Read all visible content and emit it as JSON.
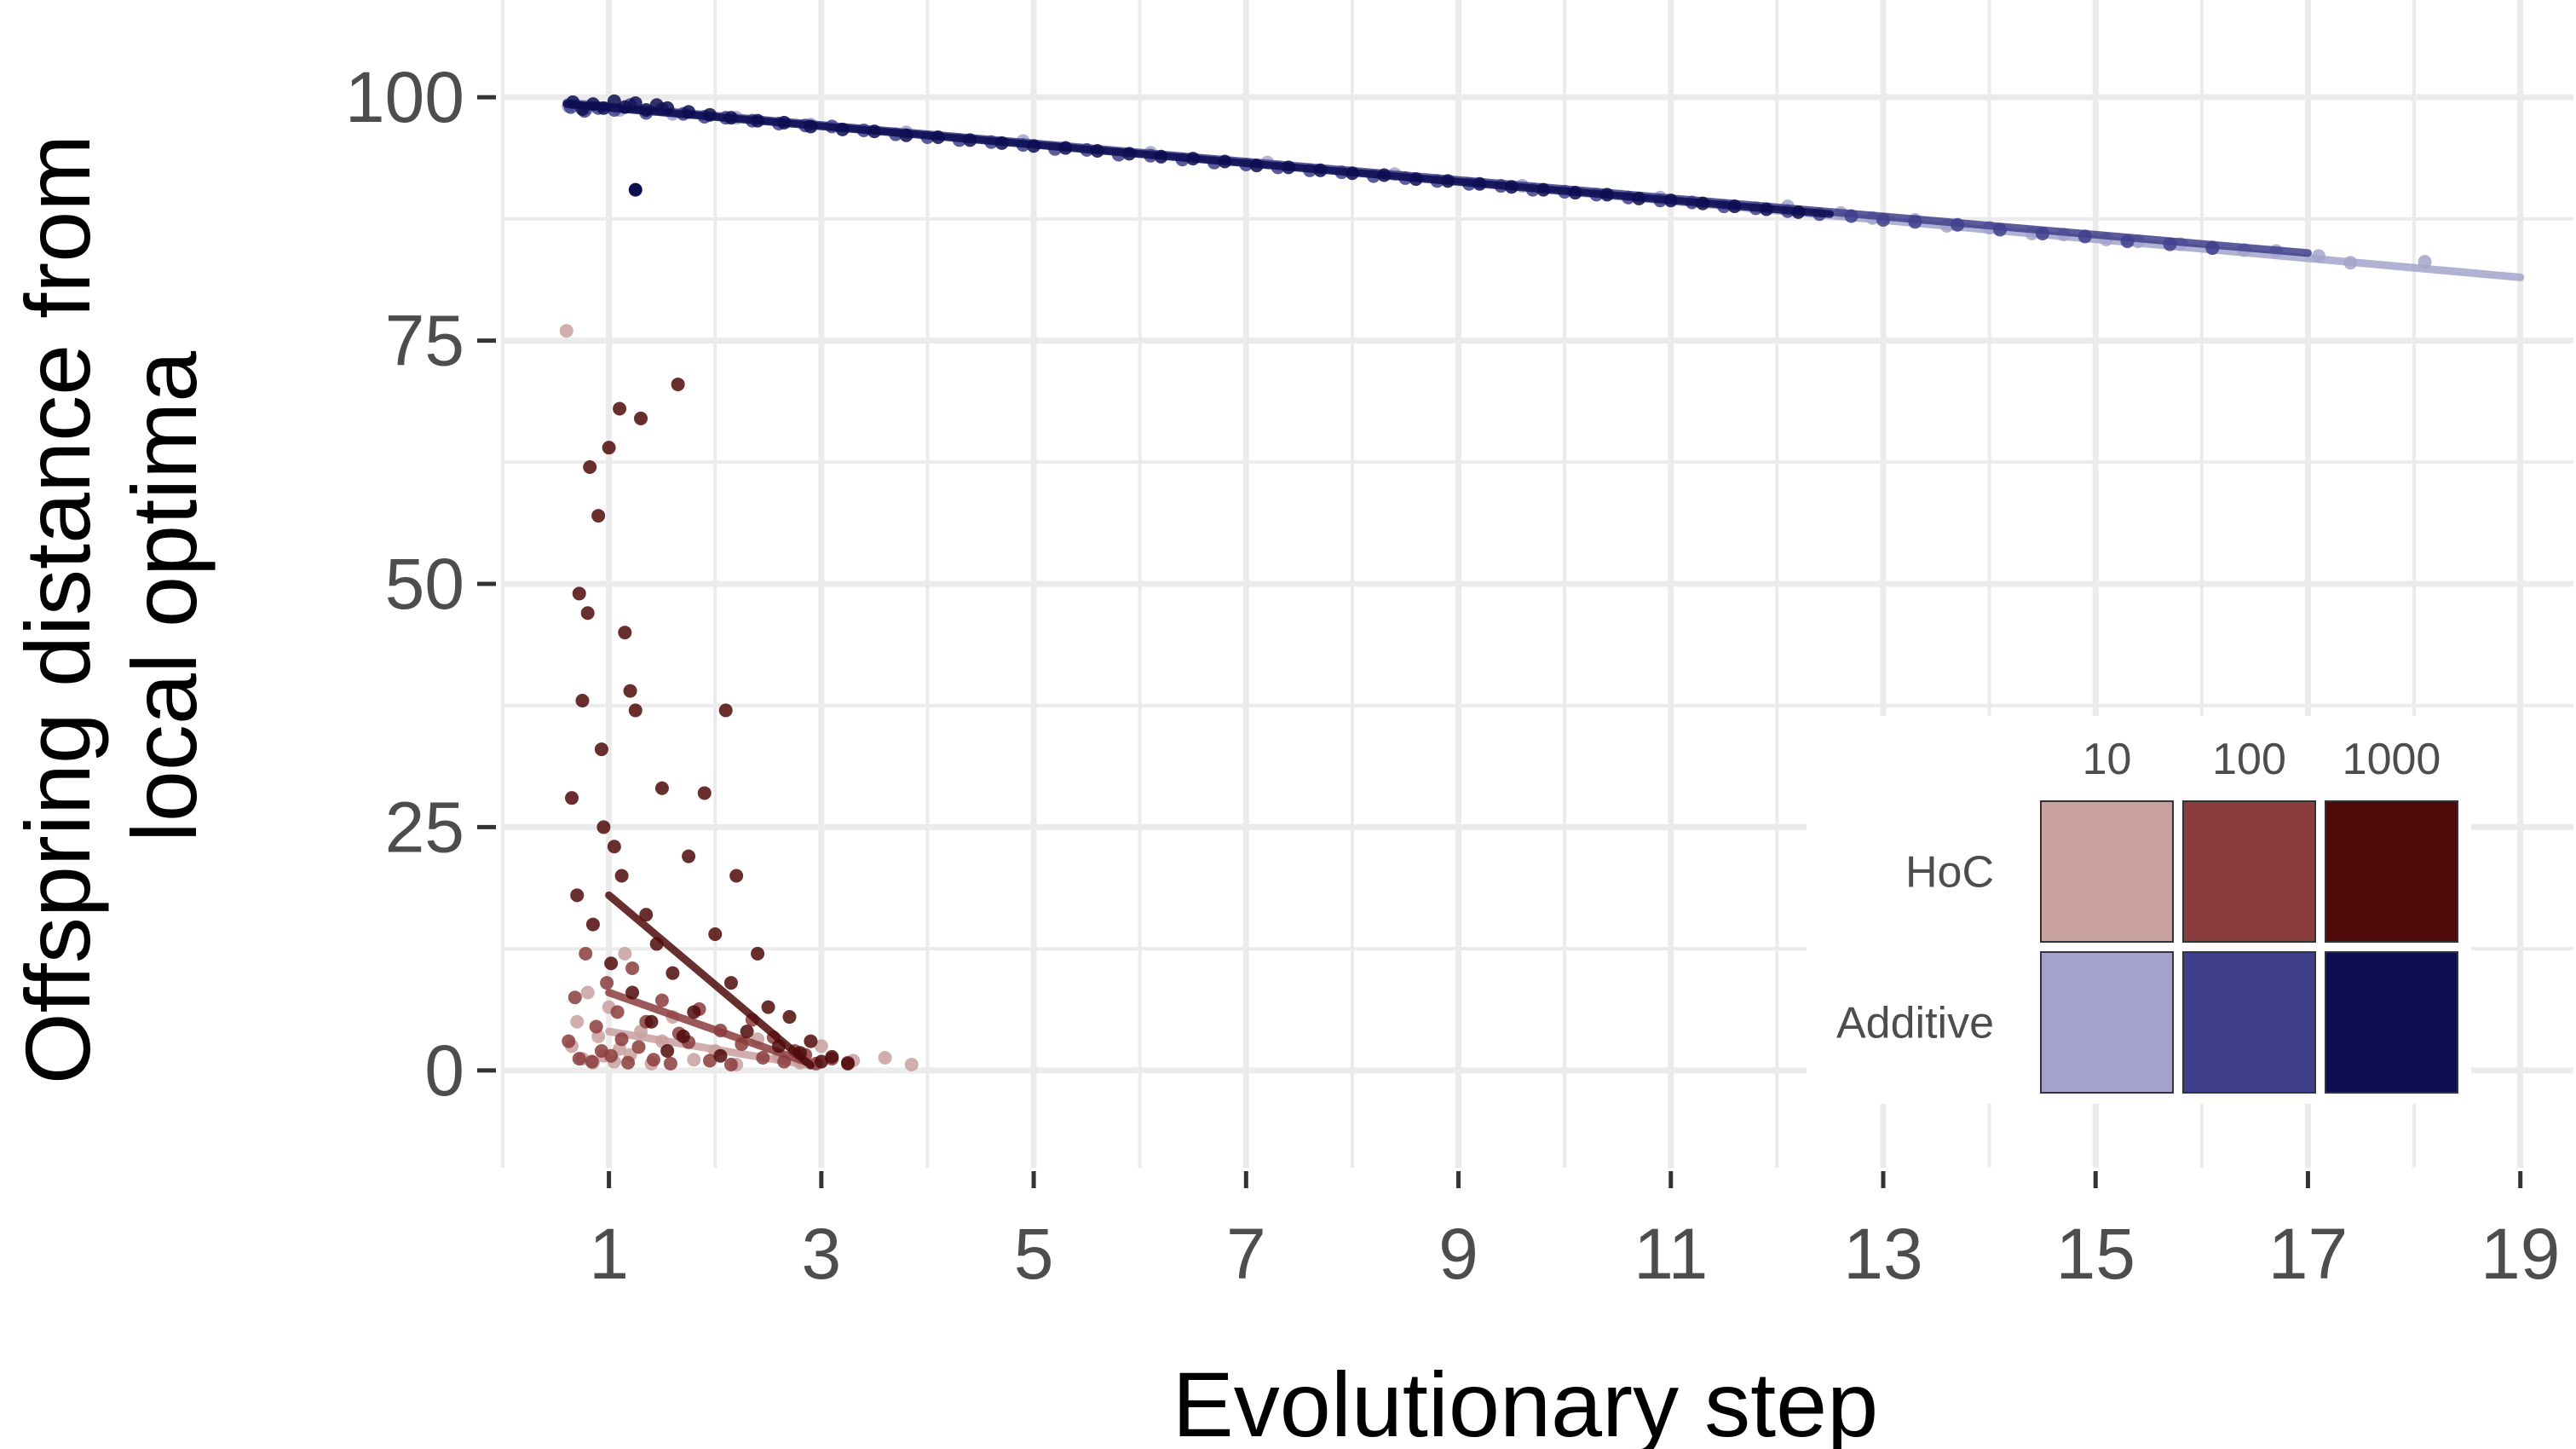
{
  "chart_data": {
    "type": "scatter",
    "title": "",
    "xlabel": "Evolutionary step",
    "ylabel_lines": [
      "Offspring distance from",
      "local optima"
    ],
    "xlim": [
      0,
      19.5
    ],
    "ylim": [
      -10,
      110
    ],
    "x_ticks": [
      1,
      3,
      5,
      7,
      9,
      11,
      13,
      15,
      17,
      19
    ],
    "y_ticks": [
      0,
      25,
      50,
      75,
      100
    ],
    "grid": true,
    "legend": {
      "placement": "bottom-right",
      "columns": [
        "10",
        "100",
        "1000"
      ],
      "rows": [
        "HoC",
        "Additive"
      ],
      "colors": {
        "HoC": [
          "#c9a0a0",
          "#8b3c3c",
          "#4f0a0a"
        ],
        "Additive": [
          "#a3a3cd",
          "#3f3f8c",
          "#0d0d52"
        ]
      }
    },
    "series": [
      {
        "model": "Additive",
        "size": "10",
        "color": "#a3a3cd",
        "trend": [
          [
            0.6,
            99.5
          ],
          [
            19.0,
            81.5
          ]
        ],
        "x": [
          0.62,
          0.8,
          1.1,
          1.6,
          2.2,
          2.9,
          3.8,
          4.9,
          6.1,
          7.2,
          8.4,
          9.6,
          10.9,
          12.1,
          12.6,
          12.9,
          13.3,
          13.6,
          14.0,
          14.4,
          14.7,
          15.1,
          15.4,
          15.8,
          16.1,
          16.4,
          16.7,
          17.1,
          17.4,
          18.1
        ],
        "y": [
          99.1,
          98.9,
          98.7,
          98.3,
          97.9,
          97.2,
          96.4,
          95.5,
          94.3,
          93.3,
          92.1,
          90.9,
          89.7,
          88.8,
          88.1,
          87.6,
          87.4,
          86.8,
          86.6,
          86.0,
          85.9,
          85.4,
          85.2,
          84.9,
          84.6,
          84.3,
          84.2,
          83.7,
          83.0,
          83.1
        ]
      },
      {
        "model": "Additive",
        "size": "100",
        "color": "#3f3f8c",
        "trend": [
          [
            0.6,
            99.4
          ],
          [
            17.0,
            84.0
          ]
        ],
        "x": [
          0.64,
          0.77,
          0.9,
          1.05,
          1.2,
          1.35,
          1.5,
          1.7,
          1.9,
          2.1,
          2.35,
          2.6,
          2.85,
          3.1,
          3.4,
          3.7,
          4.0,
          4.3,
          4.6,
          4.9,
          5.2,
          5.5,
          5.8,
          6.1,
          6.4,
          6.7,
          7.0,
          7.3,
          7.6,
          7.9,
          8.2,
          8.5,
          8.8,
          9.1,
          9.4,
          9.7,
          10.0,
          10.3,
          10.6,
          10.9,
          11.2,
          11.5,
          11.8,
          12.1,
          12.4,
          12.7,
          13.0,
          13.3,
          13.7,
          14.1,
          14.5,
          14.9,
          15.3,
          15.7,
          16.1
        ],
        "y": [
          99.0,
          98.6,
          98.9,
          98.7,
          99.2,
          98.4,
          98.8,
          98.3,
          98.0,
          97.9,
          97.6,
          97.3,
          97.1,
          97.0,
          96.6,
          96.2,
          95.9,
          95.6,
          95.4,
          95.1,
          94.7,
          94.6,
          94.1,
          94.0,
          93.6,
          93.3,
          93.1,
          92.8,
          92.5,
          92.3,
          91.9,
          91.7,
          91.4,
          91.1,
          90.9,
          90.5,
          90.3,
          90.0,
          89.7,
          89.4,
          89.2,
          88.8,
          88.6,
          88.3,
          88.0,
          87.8,
          87.4,
          87.2,
          86.9,
          86.4,
          86.0,
          85.7,
          85.2,
          84.9,
          84.5
        ]
      },
      {
        "model": "Additive",
        "size": "1000",
        "color": "#0d0d52",
        "trend": [
          [
            0.6,
            99.3
          ],
          [
            12.5,
            88.0
          ]
        ],
        "x": [
          0.66,
          0.75,
          0.85,
          0.95,
          1.05,
          1.15,
          1.25,
          1.35,
          1.45,
          1.55,
          1.75,
          1.95,
          2.15,
          2.4,
          2.65,
          2.9,
          3.2,
          3.5,
          3.8,
          4.1,
          4.4,
          4.7,
          5.0,
          5.3,
          5.6,
          5.9,
          6.2,
          6.5,
          6.8,
          7.1,
          7.4,
          7.7,
          8.0,
          8.3,
          8.6,
          8.9,
          9.2,
          9.5,
          9.8,
          10.1,
          10.4,
          10.7,
          11.0,
          11.3,
          11.6,
          11.9,
          12.2
        ],
        "y": [
          99.5,
          98.8,
          99.3,
          98.9,
          99.6,
          99.0,
          99.4,
          98.7,
          99.2,
          98.9,
          98.5,
          98.2,
          97.9,
          97.6,
          97.4,
          97.0,
          96.7,
          96.5,
          96.1,
          95.9,
          95.6,
          95.3,
          95.0,
          94.8,
          94.5,
          94.2,
          93.9,
          93.7,
          93.4,
          93.0,
          92.8,
          92.5,
          92.2,
          92.0,
          91.6,
          91.4,
          91.1,
          90.8,
          90.5,
          90.2,
          90.0,
          89.6,
          89.4,
          89.1,
          88.8,
          88.5,
          88.2
        ]
      },
      {
        "model": "HoC",
        "size": "10",
        "color": "#c9a0a0",
        "trend": [
          [
            1.0,
            4.0
          ],
          [
            2.9,
            0.5
          ]
        ],
        "x": [
          0.6,
          0.65,
          0.7,
          0.75,
          0.8,
          0.85,
          0.9,
          0.95,
          1.0,
          1.05,
          1.1,
          1.15,
          1.2,
          1.3,
          1.4,
          1.5,
          1.6,
          1.8,
          2.0,
          2.2,
          2.4,
          2.6,
          2.8,
          3.0,
          3.3,
          3.6,
          3.85
        ],
        "y": [
          76.0,
          2.5,
          5.0,
          1.2,
          8.0,
          0.8,
          3.5,
          1.5,
          6.5,
          0.9,
          2.2,
          12.0,
          1.6,
          4.0,
          0.7,
          3.0,
          5.5,
          1.1,
          2.0,
          0.6,
          3.2,
          1.4,
          0.8,
          2.5,
          1.0,
          1.3,
          0.6
        ]
      },
      {
        "model": "HoC",
        "size": "100",
        "color": "#8b3c3c",
        "trend": [
          [
            1.0,
            8.0
          ],
          [
            2.9,
            0.7
          ]
        ],
        "x": [
          0.62,
          0.68,
          0.72,
          0.78,
          0.84,
          0.88,
          0.93,
          0.98,
          1.02,
          1.08,
          1.12,
          1.18,
          1.22,
          1.28,
          1.35,
          1.42,
          1.5,
          1.58,
          1.66,
          1.75,
          1.85,
          1.95,
          2.05,
          2.15,
          2.25,
          2.35,
          2.45,
          2.55,
          2.65,
          2.75,
          2.85,
          2.95,
          3.1,
          3.25
        ],
        "y": [
          3.0,
          7.5,
          1.2,
          12.0,
          0.9,
          4.5,
          2.0,
          9.0,
          1.5,
          6.0,
          3.2,
          0.8,
          10.5,
          2.4,
          5.0,
          1.1,
          7.2,
          0.7,
          3.8,
          2.9,
          6.3,
          1.0,
          4.1,
          0.6,
          2.7,
          5.2,
          1.3,
          3.4,
          0.9,
          2.0,
          1.6,
          0.7,
          1.2,
          0.8
        ]
      },
      {
        "model": "HoC",
        "size": "1000",
        "color": "#4f0a0a",
        "trend": [
          [
            1.0,
            18.0
          ],
          [
            2.9,
            0.5
          ]
        ],
        "x": [
          0.65,
          0.7,
          0.72,
          0.75,
          0.8,
          0.82,
          0.85,
          0.9,
          0.93,
          0.95,
          1.0,
          1.02,
          1.05,
          1.1,
          1.12,
          1.15,
          1.2,
          1.22,
          1.25,
          1.3,
          1.35,
          1.4,
          1.45,
          1.5,
          1.55,
          1.6,
          1.65,
          1.7,
          1.75,
          1.8,
          1.9,
          2.0,
          2.05,
          2.1,
          2.15,
          2.2,
          2.3,
          2.4,
          2.5,
          2.6,
          2.7,
          2.8,
          2.9,
          3.0,
          3.1,
          3.25
        ],
        "y": [
          28.0,
          18.0,
          49.0,
          38.0,
          47.0,
          62.0,
          15.0,
          57.0,
          33.0,
          25.0,
          64.0,
          11.0,
          23.0,
          68.0,
          20.0,
          45.0,
          39.0,
          8.0,
          37.0,
          67.0,
          16.0,
          5.0,
          13.0,
          29.0,
          2.0,
          10.0,
          70.5,
          3.5,
          22.0,
          6.0,
          28.5,
          14.0,
          1.5,
          37.0,
          9.0,
          20.0,
          4.0,
          12.0,
          6.5,
          2.5,
          5.5,
          1.8,
          3.0,
          0.9,
          1.4,
          0.7
        ]
      }
    ],
    "outliers": [
      {
        "model": "Additive",
        "size": "1000",
        "x": 1.25,
        "y": 90.5
      }
    ]
  }
}
